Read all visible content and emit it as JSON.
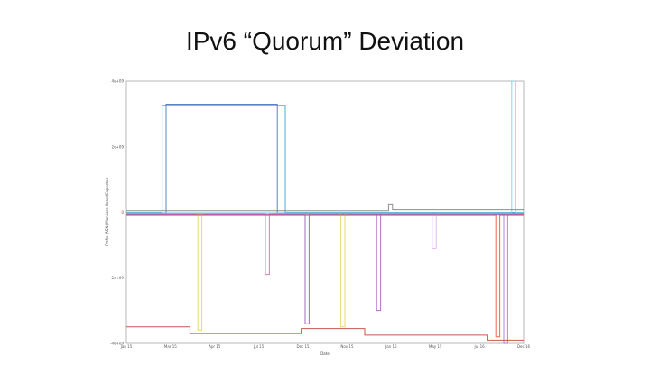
{
  "slide": {
    "title": "IPv6 “Quorum” Deviation"
  },
  "chart_data": {
    "type": "line",
    "title": "",
    "xlabel": "Date",
    "ylabel": "Prefix (ASN) Monitors Heard/Expected",
    "x_ticks": [
      "Jan 15",
      "Mar 15",
      "Apr 15",
      "Jul 15",
      "Dec 15",
      "Nov 15",
      "Jan 16",
      "May 15",
      "Jul 16",
      "Dec 16"
    ],
    "y_ticks": [
      "4e+09",
      "2e+09",
      "0",
      "-2e+09",
      "-4e+09"
    ],
    "xlim": [
      0,
      100
    ],
    "ylim": [
      -4000000000,
      4000000000
    ],
    "grid": false,
    "series": [
      {
        "color": "#2aa0c8",
        "points": [
          [
            0,
            0
          ],
          [
            9,
            0
          ],
          [
            9,
            3250000000
          ],
          [
            40,
            3250000000
          ],
          [
            40,
            0
          ],
          [
            100,
            0
          ]
        ]
      },
      {
        "color": "#3b6fb6",
        "points": [
          [
            0,
            -20000000
          ],
          [
            10,
            -20000000
          ],
          [
            10,
            3300000000
          ],
          [
            38,
            3300000000
          ],
          [
            38,
            -20000000
          ],
          [
            100,
            -20000000
          ]
        ]
      },
      {
        "color": "#8f4fbf",
        "points": [
          [
            0,
            -80000000
          ],
          [
            45,
            -80000000
          ],
          [
            45,
            -3400000000
          ],
          [
            46,
            -3400000000
          ],
          [
            46,
            -80000000
          ],
          [
            100,
            -80000000
          ]
        ]
      },
      {
        "color": "#9b59b6",
        "points": [
          [
            0,
            -60000000
          ],
          [
            63,
            -60000000
          ],
          [
            63,
            -3000000000
          ],
          [
            64,
            -3000000000
          ],
          [
            64,
            -60000000
          ],
          [
            100,
            -60000000
          ]
        ]
      },
      {
        "color": "#a96fd6",
        "points": [
          [
            0,
            -90000000
          ],
          [
            95,
            -90000000
          ],
          [
            95,
            -4000000000
          ],
          [
            96,
            -4000000000
          ],
          [
            96,
            -90000000
          ],
          [
            100,
            -90000000
          ]
        ]
      },
      {
        "color": "#7ec8e3",
        "points": [
          [
            0,
            -10000000
          ],
          [
            97,
            -10000000
          ],
          [
            97,
            4000000000
          ],
          [
            98,
            4000000000
          ],
          [
            98,
            0
          ],
          [
            100,
            0
          ]
        ]
      },
      {
        "color": "#c0392b",
        "points": [
          [
            0,
            -3500000000
          ],
          [
            16,
            -3500000000
          ],
          [
            16,
            -3700000000
          ],
          [
            44,
            -3700000000
          ],
          [
            44,
            -3550000000
          ],
          [
            60,
            -3550000000
          ],
          [
            60,
            -3750000000
          ],
          [
            91,
            -3750000000
          ],
          [
            91,
            -3900000000
          ],
          [
            100,
            -3900000000
          ]
        ]
      },
      {
        "color": "#e8d44d",
        "points": [
          [
            0,
            -40000000
          ],
          [
            18,
            -40000000
          ],
          [
            18,
            -3600000000
          ],
          [
            19,
            -3600000000
          ],
          [
            19,
            -40000000
          ],
          [
            54,
            -40000000
          ],
          [
            54,
            -3500000000
          ],
          [
            55,
            -3500000000
          ],
          [
            55,
            -40000000
          ],
          [
            100,
            -40000000
          ]
        ]
      },
      {
        "color": "#7a7a7a",
        "points": [
          [
            0,
            50000000
          ],
          [
            66,
            50000000
          ],
          [
            66,
            250000000
          ],
          [
            67,
            250000000
          ],
          [
            67,
            80000000
          ],
          [
            100,
            80000000
          ]
        ]
      },
      {
        "color": "#d46a9f",
        "points": [
          [
            0,
            -30000000
          ],
          [
            35,
            -30000000
          ],
          [
            35,
            -1900000000
          ],
          [
            36,
            -1900000000
          ],
          [
            36,
            -30000000
          ],
          [
            100,
            -30000000
          ]
        ]
      },
      {
        "color": "#e2b3f0",
        "points": [
          [
            0,
            -50000000
          ],
          [
            77,
            -50000000
          ],
          [
            77,
            -1100000000
          ],
          [
            78,
            -1100000000
          ],
          [
            78,
            -50000000
          ],
          [
            100,
            -50000000
          ]
        ]
      },
      {
        "color": "#e74c3c",
        "points": [
          [
            0,
            -100000000
          ],
          [
            93,
            -100000000
          ],
          [
            93,
            -3800000000
          ],
          [
            94,
            -3800000000
          ],
          [
            94,
            -100000000
          ],
          [
            100,
            -100000000
          ]
        ]
      }
    ]
  }
}
